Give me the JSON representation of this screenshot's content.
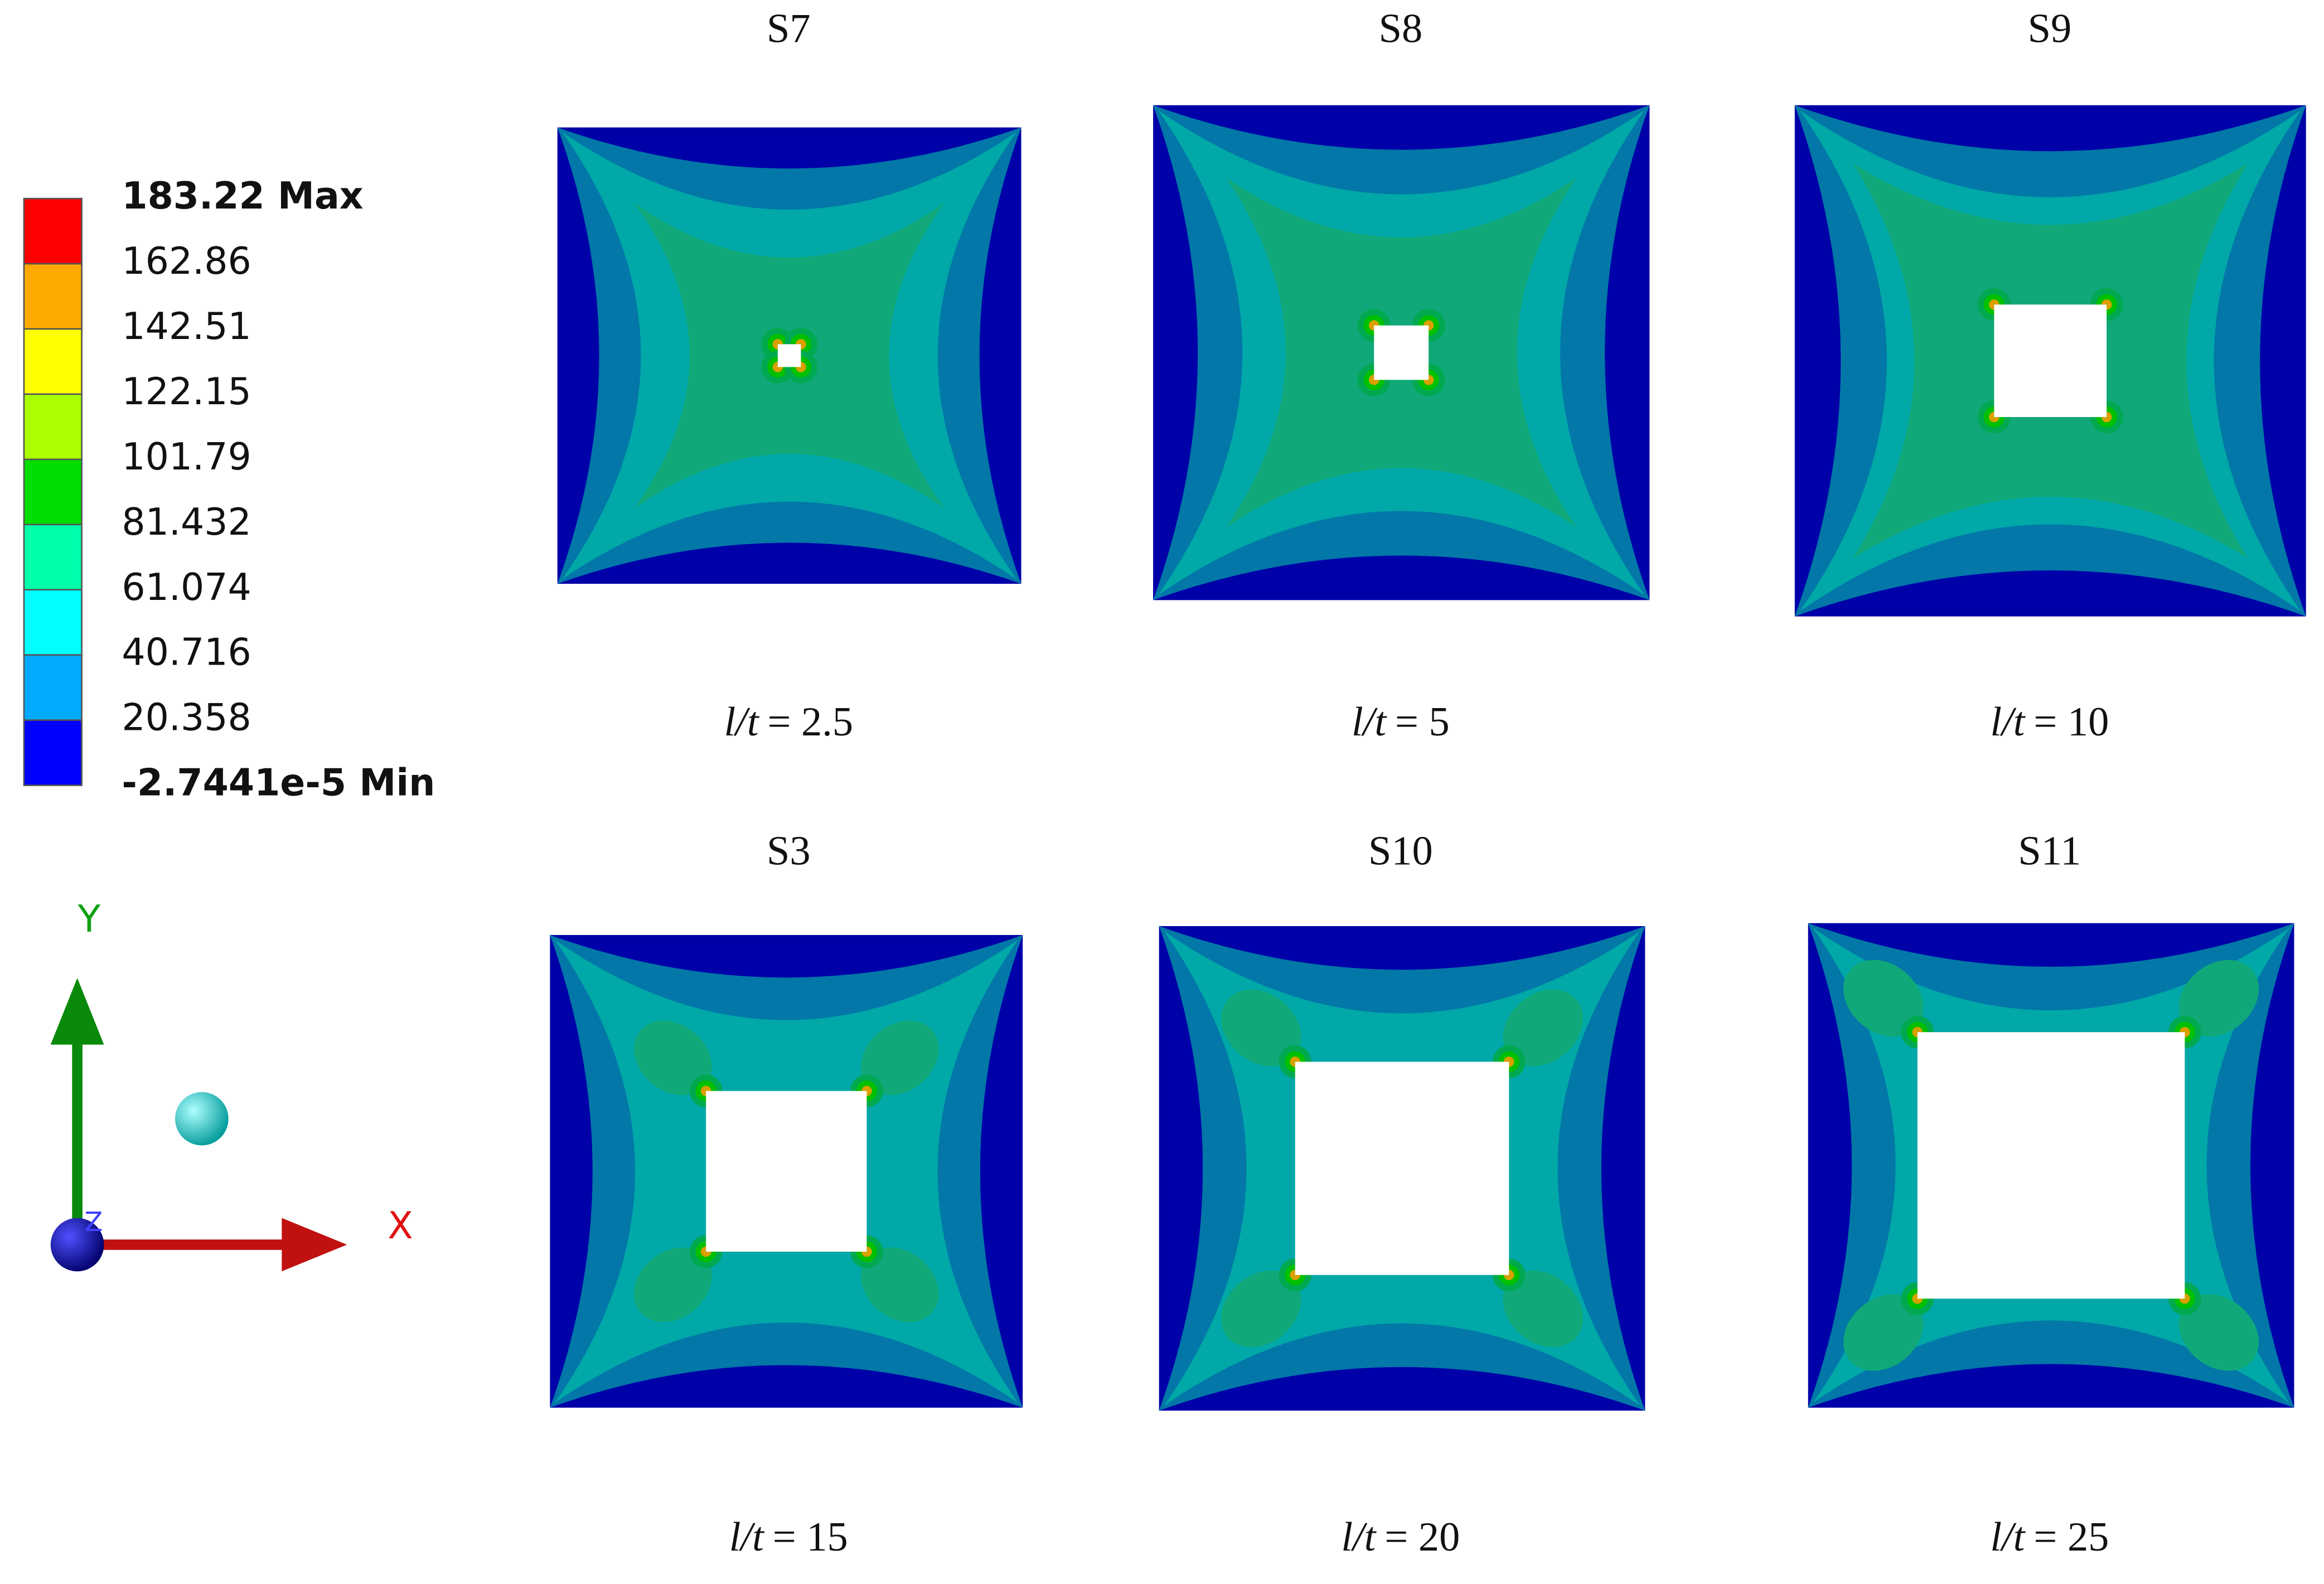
{
  "legend": {
    "labels": [
      "183.22 Max",
      "162.86",
      "142.51",
      "122.15",
      "101.79",
      "81.432",
      "61.074",
      "40.716",
      "20.358",
      "-2.7441e-5 Min"
    ],
    "colors": [
      "#ff0000",
      "#ffaa00",
      "#ffff00",
      "#aaff00",
      "#00dd00",
      "#00ffaa",
      "#00ffff",
      "#00aaff",
      "#0000ff"
    ]
  },
  "axes_triad": {
    "x": "X",
    "y": "Y",
    "z": "Z"
  },
  "panels": [
    {
      "title": "S7",
      "ratio": "l/t",
      "value": "= 2.5"
    },
    {
      "title": "S8",
      "ratio": "l/t",
      "value": "= 5"
    },
    {
      "title": "S9",
      "ratio": "l/t",
      "value": "= 10"
    },
    {
      "title": "S3",
      "ratio": "l/t",
      "value": "= 15"
    },
    {
      "title": "S10",
      "ratio": "l/t",
      "value": "= 20"
    },
    {
      "title": "S11",
      "ratio": "l/t",
      "value": "= 25"
    }
  ]
}
